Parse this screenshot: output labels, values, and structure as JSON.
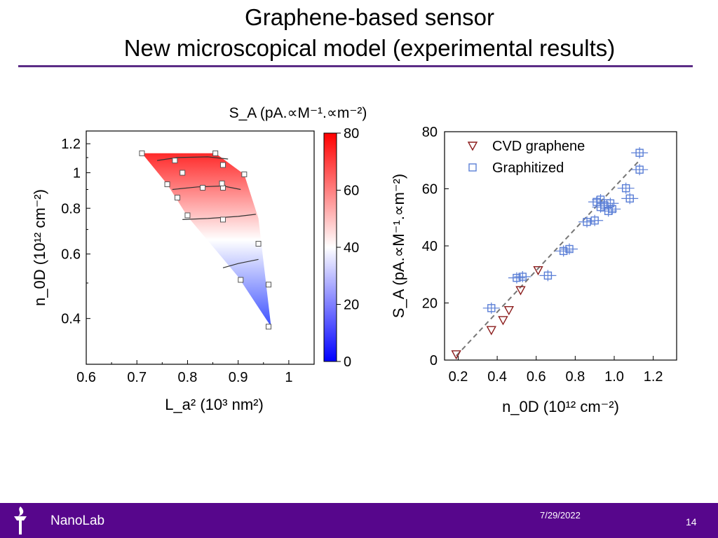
{
  "slide": {
    "title_line1": "Graphene-based sensor",
    "title_line2": "New microscopical model (experimental results)",
    "footer_org": "NanoLab",
    "footer_date": "7/29/2022",
    "page_number": "14",
    "accent_color": "#57068c"
  },
  "chart_data": [
    {
      "type": "heatmap",
      "title": "S_A (pA.∝M⁻¹.∝m⁻²)",
      "xlabel": "L_a² (10³ nm²)",
      "ylabel": "n_0D (10¹² cm⁻²)",
      "xlim": [
        0.6,
        1.05
      ],
      "ylim": [
        0.3,
        1.3
      ],
      "y_scale": "log",
      "xticks": [
        0.6,
        0.7,
        0.8,
        0.9,
        1
      ],
      "yticks": [
        0.4,
        0.6,
        0.8,
        1,
        1.2
      ],
      "colorbar": {
        "min": 0,
        "max": 80,
        "ticks": [
          0,
          20,
          40,
          60,
          80
        ],
        "low_color": "#0000ff",
        "mid_color": "#ffffff",
        "high_color": "#ff0000"
      },
      "points": [
        {
          "x": 0.71,
          "y": 1.13
        },
        {
          "x": 0.855,
          "y": 1.13
        },
        {
          "x": 0.775,
          "y": 1.08
        },
        {
          "x": 0.87,
          "y": 1.05
        },
        {
          "x": 0.79,
          "y": 1.0
        },
        {
          "x": 0.912,
          "y": 0.99
        },
        {
          "x": 0.76,
          "y": 0.93
        },
        {
          "x": 0.83,
          "y": 0.91
        },
        {
          "x": 0.87,
          "y": 0.91
        },
        {
          "x": 0.868,
          "y": 0.935
        },
        {
          "x": 0.78,
          "y": 0.855
        },
        {
          "x": 0.8,
          "y": 0.765
        },
        {
          "x": 0.87,
          "y": 0.745
        },
        {
          "x": 0.94,
          "y": 0.64
        },
        {
          "x": 0.905,
          "y": 0.51
        },
        {
          "x": 0.96,
          "y": 0.495
        },
        {
          "x": 0.96,
          "y": 0.38
        }
      ]
    },
    {
      "type": "scatter",
      "xlabel": "n_0D (10¹² cm⁻²)",
      "ylabel": "S_A (pA.∝M⁻¹.∝m⁻²)",
      "xlim": [
        0.13,
        1.32
      ],
      "ylim": [
        0,
        80
      ],
      "xticks": [
        0.2,
        0.4,
        0.6,
        0.8,
        1.0,
        1.2
      ],
      "yticks": [
        0,
        20,
        40,
        60,
        80
      ],
      "legend_position": "top-left",
      "fit_line": {
        "x": [
          0.19,
          1.13
        ],
        "y": [
          1.5,
          70
        ]
      },
      "series": [
        {
          "name": "CVD graphene",
          "marker": "triangle-down",
          "color": "#8b1c1c",
          "points": [
            {
              "x": 0.19,
              "y": 2
            },
            {
              "x": 0.37,
              "y": 10.5
            },
            {
              "x": 0.43,
              "y": 14
            },
            {
              "x": 0.46,
              "y": 17.5
            },
            {
              "x": 0.52,
              "y": 24.5
            },
            {
              "x": 0.61,
              "y": 31.5
            }
          ]
        },
        {
          "name": "Graphitized",
          "marker": "square",
          "color": "#5b7fd6",
          "points": [
            {
              "x": 0.37,
              "y": 18.2
            },
            {
              "x": 0.5,
              "y": 28.8
            },
            {
              "x": 0.53,
              "y": 29.2
            },
            {
              "x": 0.66,
              "y": 29.6
            },
            {
              "x": 0.74,
              "y": 38.2
            },
            {
              "x": 0.77,
              "y": 38.9
            },
            {
              "x": 0.86,
              "y": 48.4
            },
            {
              "x": 0.9,
              "y": 48.9
            },
            {
              "x": 0.91,
              "y": 55.4
            },
            {
              "x": 0.93,
              "y": 56.2
            },
            {
              "x": 0.93,
              "y": 53.6
            },
            {
              "x": 0.95,
              "y": 54.2
            },
            {
              "x": 0.97,
              "y": 52.2
            },
            {
              "x": 0.98,
              "y": 54.9
            },
            {
              "x": 0.99,
              "y": 52.9
            },
            {
              "x": 1.06,
              "y": 60.2
            },
            {
              "x": 1.08,
              "y": 56.6
            },
            {
              "x": 1.13,
              "y": 66.7
            },
            {
              "x": 1.13,
              "y": 72.6
            }
          ]
        }
      ]
    }
  ]
}
